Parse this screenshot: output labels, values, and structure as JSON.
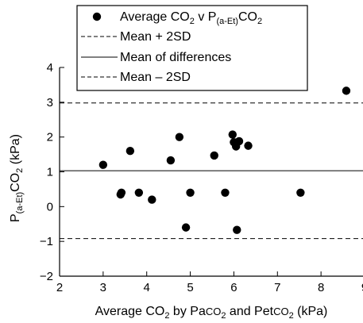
{
  "chart_data": {
    "type": "scatter",
    "xlabel": {
      "parts": [
        {
          "text": "Average CO"
        },
        {
          "text": "2",
          "sub": true
        },
        {
          "text": " by Pa"
        },
        {
          "text": "CO",
          "small": true
        },
        {
          "text": "2",
          "sub": true
        },
        {
          "text": " and Pet"
        },
        {
          "text": "CO",
          "small": true
        },
        {
          "text": "2",
          "sub": true
        },
        {
          "text": " (kPa)"
        }
      ]
    },
    "ylabel": {
      "parts": [
        {
          "text": "P"
        },
        {
          "text": "(a-Et)",
          "sub": true
        },
        {
          "text": "CO"
        },
        {
          "text": "2",
          "sub": true
        },
        {
          "text": " (kPa)"
        }
      ]
    },
    "xlim": [
      2,
      9
    ],
    "ylim": [
      -2,
      4
    ],
    "xticks": [
      "2",
      "3",
      "4",
      "5",
      "6",
      "7",
      "8",
      "9"
    ],
    "yticks": [
      "−2",
      "−1",
      "0",
      "1",
      "2",
      "3",
      "4"
    ],
    "grid": false,
    "legend_position": "top-left",
    "legend": [
      {
        "kind": "marker",
        "parts": [
          {
            "text": "Average CO"
          },
          {
            "text": "2",
            "sub": true
          },
          {
            "text": " v P"
          },
          {
            "text": "(a-Et)",
            "sub": true
          },
          {
            "text": "CO"
          },
          {
            "text": "2",
            "sub": true
          }
        ]
      },
      {
        "kind": "dashed",
        "parts": [
          {
            "text": "Mean + 2SD"
          }
        ]
      },
      {
        "kind": "solid",
        "parts": [
          {
            "text": "Mean of differences"
          }
        ]
      },
      {
        "kind": "dashed",
        "parts": [
          {
            "text": "Mean – 2SD"
          }
        ]
      }
    ],
    "reference_lines": [
      {
        "y": 2.98,
        "style": "dashed"
      },
      {
        "y": 1.03,
        "style": "solid"
      },
      {
        "y": -0.92,
        "style": "dashed"
      }
    ],
    "points": [
      {
        "x": 3.0,
        "y": 1.2
      },
      {
        "x": 3.4,
        "y": 0.35
      },
      {
        "x": 3.42,
        "y": 0.4
      },
      {
        "x": 3.62,
        "y": 1.6
      },
      {
        "x": 3.82,
        "y": 0.4
      },
      {
        "x": 4.12,
        "y": 0.2
      },
      {
        "x": 4.55,
        "y": 1.33
      },
      {
        "x": 4.75,
        "y": 2.0
      },
      {
        "x": 4.9,
        "y": -0.6
      },
      {
        "x": 5.0,
        "y": 0.4
      },
      {
        "x": 5.55,
        "y": 1.47
      },
      {
        "x": 5.8,
        "y": 0.4
      },
      {
        "x": 5.97,
        "y": 2.07
      },
      {
        "x": 6.0,
        "y": 1.85
      },
      {
        "x": 6.05,
        "y": 1.73
      },
      {
        "x": 6.07,
        "y": -0.67
      },
      {
        "x": 6.12,
        "y": 1.88
      },
      {
        "x": 6.33,
        "y": 1.75
      },
      {
        "x": 7.53,
        "y": 0.4
      },
      {
        "x": 8.58,
        "y": 3.33
      }
    ]
  }
}
